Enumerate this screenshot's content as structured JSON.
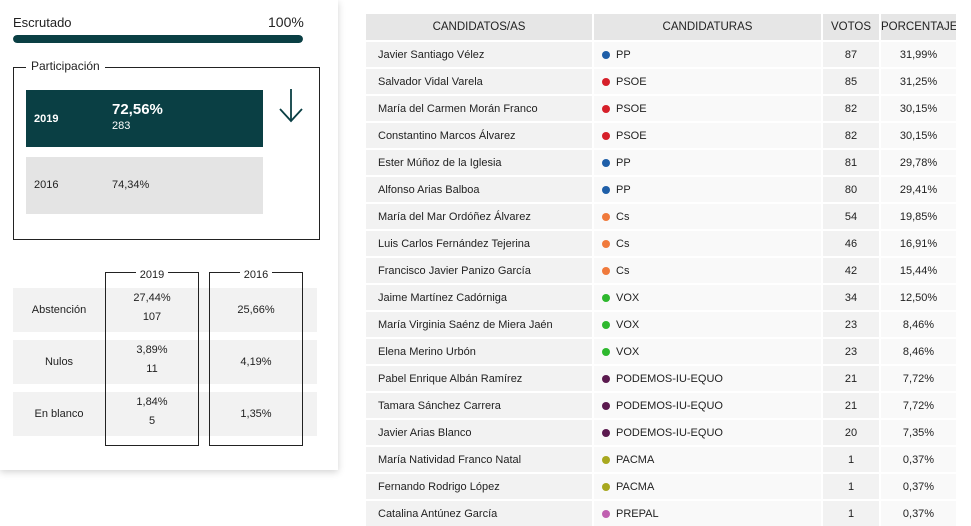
{
  "escrutado": {
    "label": "Escrutado",
    "value": "100%",
    "progress": 1.0
  },
  "participacion": {
    "title": "Participación",
    "current": {
      "year": "2019",
      "pct": "72,56%",
      "count": "283"
    },
    "previous": {
      "year": "2016",
      "pct": "74,34%"
    },
    "trend_icon": "arrow-down-icon"
  },
  "stats": {
    "col_2019": "2019",
    "col_2016": "2016",
    "rows": [
      {
        "label": "Abstención",
        "pct_2019": "27,44%",
        "count_2019": "107",
        "pct_2016": "25,66%"
      },
      {
        "label": "Nulos",
        "pct_2019": "3,89%",
        "count_2019": "11",
        "pct_2016": "4,19%"
      },
      {
        "label": "En blanco",
        "pct_2019": "1,84%",
        "count_2019": "5",
        "pct_2016": "1,35%"
      }
    ]
  },
  "table": {
    "headers": {
      "candidate": "CANDIDATOS/AS",
      "party": "CANDIDATURAS",
      "votes": "VOTOS",
      "pct": "PORCENTAJE"
    },
    "rows": [
      {
        "candidate": "Javier Santiago Vélez",
        "party": "PP",
        "color": "#1f5fa8",
        "votes": "87",
        "pct": "31,99%"
      },
      {
        "candidate": "Salvador Vidal Varela",
        "party": "PSOE",
        "color": "#d6202a",
        "votes": "85",
        "pct": "31,25%"
      },
      {
        "candidate": "María del Carmen Morán Franco",
        "party": "PSOE",
        "color": "#d6202a",
        "votes": "82",
        "pct": "30,15%"
      },
      {
        "candidate": "Constantino Marcos Álvarez",
        "party": "PSOE",
        "color": "#d6202a",
        "votes": "82",
        "pct": "30,15%"
      },
      {
        "candidate": "Ester Múñoz de la Iglesia",
        "party": "PP",
        "color": "#1f5fa8",
        "votes": "81",
        "pct": "29,78%"
      },
      {
        "candidate": "Alfonso Arias Balboa",
        "party": "PP",
        "color": "#1f5fa8",
        "votes": "80",
        "pct": "29,41%"
      },
      {
        "candidate": "María del Mar Ordóñez Álvarez",
        "party": "Cs",
        "color": "#f07a3c",
        "votes": "54",
        "pct": "19,85%"
      },
      {
        "candidate": "Luis Carlos Fernández Tejerina",
        "party": "Cs",
        "color": "#f07a3c",
        "votes": "46",
        "pct": "16,91%"
      },
      {
        "candidate": "Francisco Javier Panizo García",
        "party": "Cs",
        "color": "#f07a3c",
        "votes": "42",
        "pct": "15,44%"
      },
      {
        "candidate": "Jaime Martínez Cadórniga",
        "party": "VOX",
        "color": "#2eb82e",
        "votes": "34",
        "pct": "12,50%"
      },
      {
        "candidate": "María Virginia Saénz de Miera Jaén",
        "party": "VOX",
        "color": "#2eb82e",
        "votes": "23",
        "pct": "8,46%"
      },
      {
        "candidate": "Elena Merino Urbón",
        "party": "VOX",
        "color": "#2eb82e",
        "votes": "23",
        "pct": "8,46%"
      },
      {
        "candidate": "Pabel Enrique Albán Ramírez",
        "party": "PODEMOS-IU-EQUO",
        "color": "#5b1a4f",
        "votes": "21",
        "pct": "7,72%"
      },
      {
        "candidate": "Tamara Sánchez Carrera",
        "party": "PODEMOS-IU-EQUO",
        "color": "#5b1a4f",
        "votes": "21",
        "pct": "7,72%"
      },
      {
        "candidate": "Javier Arias Blanco",
        "party": "PODEMOS-IU-EQUO",
        "color": "#5b1a4f",
        "votes": "20",
        "pct": "7,35%"
      },
      {
        "candidate": "María Natividad Franco Natal",
        "party": "PACMA",
        "color": "#a8a81f",
        "votes": "1",
        "pct": "0,37%"
      },
      {
        "candidate": "Fernando Rodrigo López",
        "party": "PACMA",
        "color": "#a8a81f",
        "votes": "1",
        "pct": "0,37%"
      },
      {
        "candidate": "Catalina Antúnez García",
        "party": "PREPAL",
        "color": "#c060b0",
        "votes": "1",
        "pct": "0,37%"
      }
    ]
  }
}
